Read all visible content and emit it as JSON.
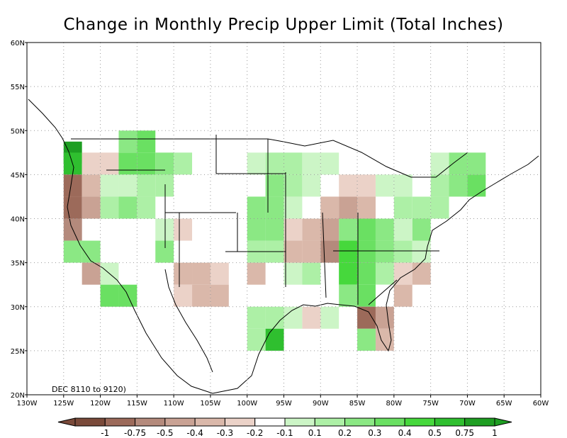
{
  "title": "Change in Monthly Precip Upper Limit (Total Inches)",
  "period_label": "DEC 8110 to 9120)",
  "axes": {
    "lon_labels": [
      "130W",
      "125W",
      "120W",
      "115W",
      "110W",
      "105W",
      "100W",
      "95W",
      "90W",
      "85W",
      "80W",
      "75W",
      "70W",
      "65W",
      "60W"
    ],
    "lon_values": [
      -130,
      -125,
      -120,
      -115,
      -110,
      -105,
      -100,
      -95,
      -90,
      -85,
      -80,
      -75,
      -70,
      -65,
      -60
    ],
    "lat_labels": [
      "20N",
      "25N",
      "30N",
      "35N",
      "40N",
      "45N",
      "50N",
      "55N",
      "60N"
    ],
    "lat_values": [
      20,
      25,
      30,
      35,
      40,
      45,
      50,
      55,
      60
    ],
    "lon_range": [
      -130,
      -60
    ],
    "lat_range": [
      20,
      60
    ],
    "grid": "dotted"
  },
  "colorbar": {
    "labels": [
      "-1",
      "-0.75",
      "-0.5",
      "-0.4",
      "-0.3",
      "-0.2",
      "-0.1",
      "0.1",
      "0.2",
      "0.3",
      "0.4",
      "0.5",
      "0.75",
      "1"
    ],
    "colors": [
      "#7a4a3a",
      "#9c6a5a",
      "#b48a7c",
      "#c9a294",
      "#dab8aa",
      "#ebd2c8",
      "#ffffff",
      "#ccf5c6",
      "#adf0a6",
      "#8be884",
      "#6ae062",
      "#46d83c",
      "#2fbf2f",
      "#1e9e22"
    ]
  },
  "chart_data": {
    "type": "heatmap",
    "title": "Change in Monthly Precip Upper Limit (Total Inches)",
    "cell_size_deg": 2.5,
    "units": "inches",
    "cells_note": "cells given as [lon_center, lat_center, level_index into colorbar.colors]",
    "cells": [
      [
        -123.75,
        47.5,
        13
      ],
      [
        -123.75,
        46.25,
        12
      ],
      [
        -121.25,
        46.25,
        5
      ],
      [
        -118.75,
        46.25,
        5
      ],
      [
        -116.25,
        46.25,
        10
      ],
      [
        -113.75,
        46.25,
        10
      ],
      [
        -116.25,
        48.75,
        9
      ],
      [
        -113.75,
        48.75,
        10
      ],
      [
        -111.25,
        46.25,
        9
      ],
      [
        -108.75,
        46.25,
        8
      ],
      [
        -123.75,
        43.75,
        1
      ],
      [
        -123.75,
        41.25,
        1
      ],
      [
        -123.75,
        38.75,
        2
      ],
      [
        -121.25,
        43.75,
        4
      ],
      [
        -121.25,
        41.25,
        3
      ],
      [
        -118.75,
        43.75,
        7
      ],
      [
        -116.25,
        43.75,
        7
      ],
      [
        -113.75,
        43.75,
        8
      ],
      [
        -111.25,
        43.75,
        8
      ],
      [
        -118.75,
        41.25,
        8
      ],
      [
        -116.25,
        41.25,
        9
      ],
      [
        -113.75,
        41.25,
        8
      ],
      [
        -111.25,
        38.75,
        7
      ],
      [
        -108.75,
        38.75,
        5
      ],
      [
        -123.75,
        36.25,
        9
      ],
      [
        -121.25,
        36.25,
        9
      ],
      [
        -121.25,
        33.75,
        3
      ],
      [
        -118.75,
        33.75,
        7
      ],
      [
        -116.25,
        33.75,
        6
      ],
      [
        -118.75,
        31.25,
        10
      ],
      [
        -116.25,
        31.25,
        10
      ],
      [
        -111.25,
        36.25,
        9
      ],
      [
        -108.75,
        33.75,
        4
      ],
      [
        -106.25,
        33.75,
        4
      ],
      [
        -103.75,
        33.75,
        5
      ],
      [
        -106.25,
        31.25,
        4
      ],
      [
        -103.75,
        31.25,
        4
      ],
      [
        -108.75,
        31.25,
        5
      ],
      [
        -98.75,
        33.75,
        4
      ],
      [
        -93.75,
        33.75,
        7
      ],
      [
        -91.25,
        33.75,
        8
      ],
      [
        -98.75,
        41.25,
        9
      ],
      [
        -98.75,
        38.75,
        9
      ],
      [
        -98.75,
        36.25,
        8
      ],
      [
        -96.25,
        41.25,
        9
      ],
      [
        -96.25,
        38.75,
        9
      ],
      [
        -96.25,
        36.25,
        8
      ],
      [
        -96.25,
        43.75,
        9
      ],
      [
        -96.25,
        46.25,
        8
      ],
      [
        -98.75,
        46.25,
        7
      ],
      [
        -93.75,
        46.25,
        8
      ],
      [
        -91.25,
        46.25,
        7
      ],
      [
        -88.75,
        46.25,
        7
      ],
      [
        -93.75,
        43.75,
        8
      ],
      [
        -91.25,
        43.75,
        7
      ],
      [
        -93.75,
        41.25,
        7
      ],
      [
        -91.25,
        38.75,
        4
      ],
      [
        -91.25,
        36.25,
        4
      ],
      [
        -93.75,
        38.75,
        5
      ],
      [
        -93.75,
        36.25,
        4
      ],
      [
        -88.75,
        38.75,
        3
      ],
      [
        -88.75,
        36.25,
        2
      ],
      [
        -88.75,
        41.25,
        4
      ],
      [
        -86.25,
        41.25,
        3
      ],
      [
        -86.25,
        43.75,
        5
      ],
      [
        -83.75,
        41.25,
        4
      ],
      [
        -83.75,
        38.75,
        10
      ],
      [
        -81.25,
        38.75,
        9
      ],
      [
        -86.25,
        38.75,
        9
      ],
      [
        -86.25,
        36.25,
        11
      ],
      [
        -83.75,
        36.25,
        10
      ],
      [
        -81.25,
        36.25,
        9
      ],
      [
        -78.75,
        36.25,
        8
      ],
      [
        -76.25,
        36.25,
        7
      ],
      [
        -86.25,
        33.75,
        11
      ],
      [
        -83.75,
        33.75,
        10
      ],
      [
        -81.25,
        33.75,
        8
      ],
      [
        -78.75,
        33.75,
        5
      ],
      [
        -76.25,
        33.75,
        4
      ],
      [
        -86.25,
        31.25,
        9
      ],
      [
        -83.75,
        31.25,
        10
      ],
      [
        -81.25,
        31.25,
        6
      ],
      [
        -78.75,
        31.25,
        4
      ],
      [
        -83.75,
        28.75,
        1
      ],
      [
        -81.25,
        28.75,
        3
      ],
      [
        -81.25,
        26.25,
        4
      ],
      [
        -78.75,
        26.25,
        6
      ],
      [
        -83.75,
        26.25,
        9
      ],
      [
        -88.75,
        28.75,
        7
      ],
      [
        -91.25,
        28.75,
        5
      ],
      [
        -93.75,
        28.75,
        7
      ],
      [
        -96.25,
        28.75,
        8
      ],
      [
        -98.75,
        28.75,
        8
      ],
      [
        -96.25,
        26.25,
        12
      ],
      [
        -98.75,
        26.25,
        8
      ],
      [
        -78.75,
        41.25,
        8
      ],
      [
        -76.25,
        41.25,
        8
      ],
      [
        -73.75,
        41.25,
        8
      ],
      [
        -76.25,
        38.75,
        9
      ],
      [
        -78.75,
        38.75,
        7
      ],
      [
        -73.75,
        43.75,
        8
      ],
      [
        -71.25,
        43.75,
        9
      ],
      [
        -68.75,
        43.75,
        10
      ],
      [
        -71.25,
        46.25,
        9
      ],
      [
        -68.75,
        46.25,
        9
      ],
      [
        -76.25,
        43.75,
        6
      ],
      [
        -78.75,
        43.75,
        7
      ],
      [
        -81.25,
        43.75,
        7
      ],
      [
        -73.75,
        46.25,
        7
      ],
      [
        -83.75,
        43.75,
        5
      ]
    ]
  }
}
